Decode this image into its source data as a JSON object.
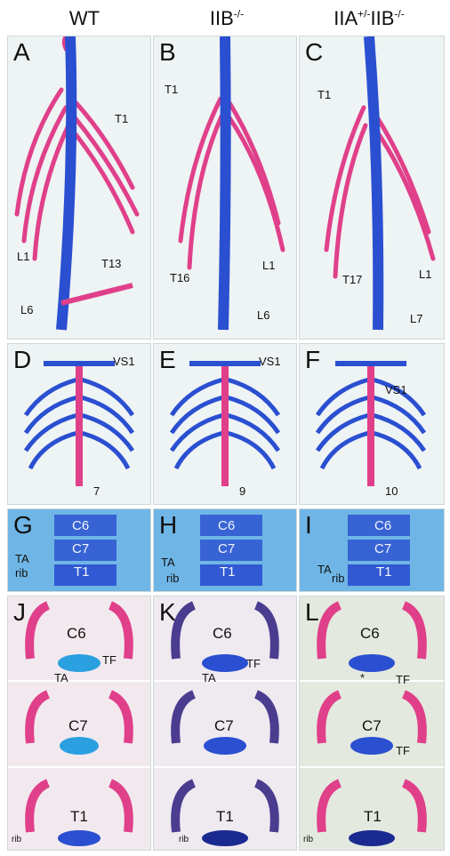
{
  "columns": [
    {
      "id": "wt",
      "label": "WT",
      "sup": ""
    },
    {
      "id": "iib",
      "label": "IIB",
      "sup": "-/-"
    },
    {
      "id": "iia_iib",
      "label": "IIA",
      "sup": "+/-",
      "label2": "IIB",
      "sup2": "-/-"
    }
  ],
  "panels": {
    "A": {
      "letter": "A",
      "labels": [
        "T1",
        "L1",
        "T13",
        "L6"
      ]
    },
    "B": {
      "letter": "B",
      "labels": [
        "T1",
        "T16",
        "L1",
        "L6"
      ]
    },
    "C": {
      "letter": "C",
      "labels": [
        "T1",
        "T17",
        "L1",
        "L7"
      ]
    },
    "D": {
      "letter": "D",
      "labels": [
        "VS1",
        "7"
      ]
    },
    "E": {
      "letter": "E",
      "labels": [
        "VS1",
        "9"
      ]
    },
    "F": {
      "letter": "F",
      "labels": [
        "VS1",
        "10"
      ]
    },
    "G": {
      "letter": "G",
      "labels": [
        "C6",
        "C7",
        "T1",
        "TA",
        "rib"
      ]
    },
    "H": {
      "letter": "H",
      "labels": [
        "C6",
        "C7",
        "T1",
        "TA",
        "rib"
      ]
    },
    "I": {
      "letter": "I",
      "labels": [
        "C6",
        "C7",
        "T1",
        "TA",
        "rib"
      ]
    },
    "J": {
      "letter": "J",
      "labels": [
        "C6",
        "TA",
        "TF",
        "C7",
        "T1",
        "rib"
      ]
    },
    "K": {
      "letter": "K",
      "labels": [
        "C6",
        "TA",
        "TF",
        "C7",
        "T1",
        "rib"
      ]
    },
    "L": {
      "letter": "L",
      "labels": [
        "C6",
        "*",
        "TF",
        "C7",
        "TF",
        "T1",
        "rib"
      ]
    }
  },
  "colors": {
    "bone": "#e0408a",
    "cartilage": "#2a4fd0",
    "light_cartilage": "#7fb4e8",
    "dark_bone": "#4a3d8f"
  }
}
